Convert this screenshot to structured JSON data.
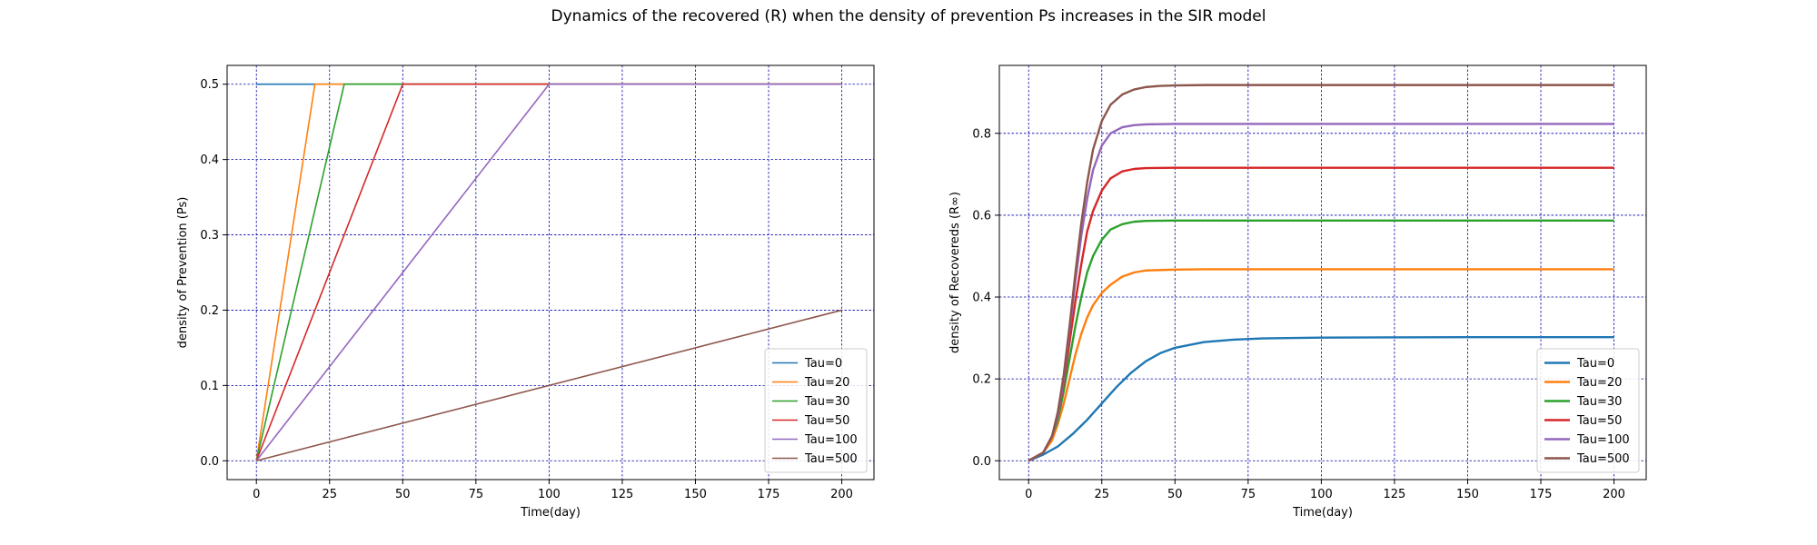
{
  "figure_title": "Dynamics of the recovered (R) when the density of prevention Ps increases in the SIR model",
  "chart_data": [
    {
      "type": "line",
      "xlabel": "Time(day)",
      "ylabel": "density of Prevention (Ps)",
      "xlim": [
        -10,
        211
      ],
      "ylim": [
        -0.025,
        0.525
      ],
      "xticks": [
        0,
        25,
        50,
        75,
        100,
        125,
        150,
        175,
        200
      ],
      "yticks": [
        0.0,
        0.1,
        0.2,
        0.3,
        0.4,
        0.5
      ],
      "ytick_labels": [
        "0.0",
        "0.1",
        "0.2",
        "0.3",
        "0.4",
        "0.5"
      ],
      "grid": true,
      "legend_position": "lower right",
      "series": [
        {
          "name": "Tau=0",
          "color": "#1f77b4",
          "x": [
            0,
            200
          ],
          "y": [
            0.5,
            0.5
          ]
        },
        {
          "name": "Tau=20",
          "color": "#ff7f0e",
          "x": [
            0,
            20,
            200
          ],
          "y": [
            0.0,
            0.5,
            0.5
          ]
        },
        {
          "name": "Tau=30",
          "color": "#2ca02c",
          "x": [
            0,
            30,
            200
          ],
          "y": [
            0.0,
            0.5,
            0.5
          ]
        },
        {
          "name": "Tau=50",
          "color": "#d62728",
          "x": [
            0,
            50,
            200
          ],
          "y": [
            0.0,
            0.5,
            0.5
          ]
        },
        {
          "name": "Tau=100",
          "color": "#9467bd",
          "x": [
            0,
            100,
            200
          ],
          "y": [
            0.0,
            0.5,
            0.5
          ]
        },
        {
          "name": "Tau=500",
          "color": "#8c564b",
          "x": [
            0,
            200
          ],
          "y": [
            0.0,
            0.2
          ]
        }
      ]
    },
    {
      "type": "line",
      "xlabel": "Time(day)",
      "ylabel": "density of Recovereds (R∞)",
      "xlim": [
        -10,
        211
      ],
      "ylim": [
        -0.046,
        0.966
      ],
      "xticks": [
        0,
        25,
        50,
        75,
        100,
        125,
        150,
        175,
        200
      ],
      "yticks": [
        0.0,
        0.2,
        0.4,
        0.6,
        0.8
      ],
      "ytick_labels": [
        "0.0",
        "0.2",
        "0.4",
        "0.6",
        "0.8"
      ],
      "grid": true,
      "legend_position": "lower right",
      "series": [
        {
          "name": "Tau=0",
          "color": "#1f77b4",
          "x": [
            0,
            5,
            10,
            15,
            20,
            25,
            30,
            35,
            40,
            45,
            50,
            60,
            70,
            80,
            100,
            150,
            200
          ],
          "y": [
            0.0,
            0.015,
            0.035,
            0.065,
            0.1,
            0.14,
            0.18,
            0.215,
            0.243,
            0.263,
            0.276,
            0.29,
            0.296,
            0.299,
            0.301,
            0.302,
            0.302
          ]
        },
        {
          "name": "Tau=20",
          "color": "#ff7f0e",
          "x": [
            0,
            5,
            8,
            10,
            12,
            14,
            16,
            18,
            20,
            22,
            25,
            28,
            32,
            36,
            40,
            50,
            60,
            100,
            200
          ],
          "y": [
            0.0,
            0.02,
            0.05,
            0.09,
            0.14,
            0.2,
            0.26,
            0.31,
            0.35,
            0.38,
            0.41,
            0.43,
            0.45,
            0.46,
            0.465,
            0.467,
            0.468,
            0.468,
            0.468
          ]
        },
        {
          "name": "Tau=30",
          "color": "#2ca02c",
          "x": [
            0,
            5,
            8,
            10,
            12,
            14,
            16,
            18,
            20,
            22,
            25,
            28,
            32,
            36,
            40,
            50,
            60,
            100,
            200
          ],
          "y": [
            0.0,
            0.02,
            0.06,
            0.1,
            0.17,
            0.25,
            0.33,
            0.4,
            0.46,
            0.5,
            0.54,
            0.565,
            0.578,
            0.584,
            0.586,
            0.587,
            0.587,
            0.587,
            0.587
          ]
        },
        {
          "name": "Tau=50",
          "color": "#d62728",
          "x": [
            0,
            5,
            8,
            10,
            12,
            14,
            16,
            18,
            20,
            22,
            25,
            28,
            32,
            36,
            40,
            50,
            60,
            100,
            200
          ],
          "y": [
            0.0,
            0.02,
            0.06,
            0.11,
            0.19,
            0.29,
            0.39,
            0.48,
            0.56,
            0.61,
            0.66,
            0.69,
            0.707,
            0.713,
            0.715,
            0.716,
            0.716,
            0.716,
            0.716
          ]
        },
        {
          "name": "Tau=100",
          "color": "#9467bd",
          "x": [
            0,
            5,
            8,
            10,
            12,
            14,
            16,
            18,
            20,
            22,
            25,
            28,
            32,
            36,
            40,
            50,
            60,
            100,
            200
          ],
          "y": [
            0.0,
            0.02,
            0.06,
            0.11,
            0.2,
            0.32,
            0.44,
            0.55,
            0.64,
            0.71,
            0.77,
            0.8,
            0.815,
            0.82,
            0.822,
            0.823,
            0.823,
            0.823,
            0.823
          ]
        },
        {
          "name": "Tau=500",
          "color": "#8c564b",
          "x": [
            0,
            5,
            8,
            10,
            12,
            14,
            16,
            18,
            20,
            22,
            25,
            28,
            32,
            36,
            40,
            45,
            50,
            60,
            100,
            200
          ],
          "y": [
            0.0,
            0.02,
            0.06,
            0.12,
            0.21,
            0.33,
            0.46,
            0.58,
            0.68,
            0.76,
            0.83,
            0.87,
            0.895,
            0.907,
            0.913,
            0.916,
            0.917,
            0.918,
            0.918,
            0.918
          ]
        }
      ]
    }
  ]
}
